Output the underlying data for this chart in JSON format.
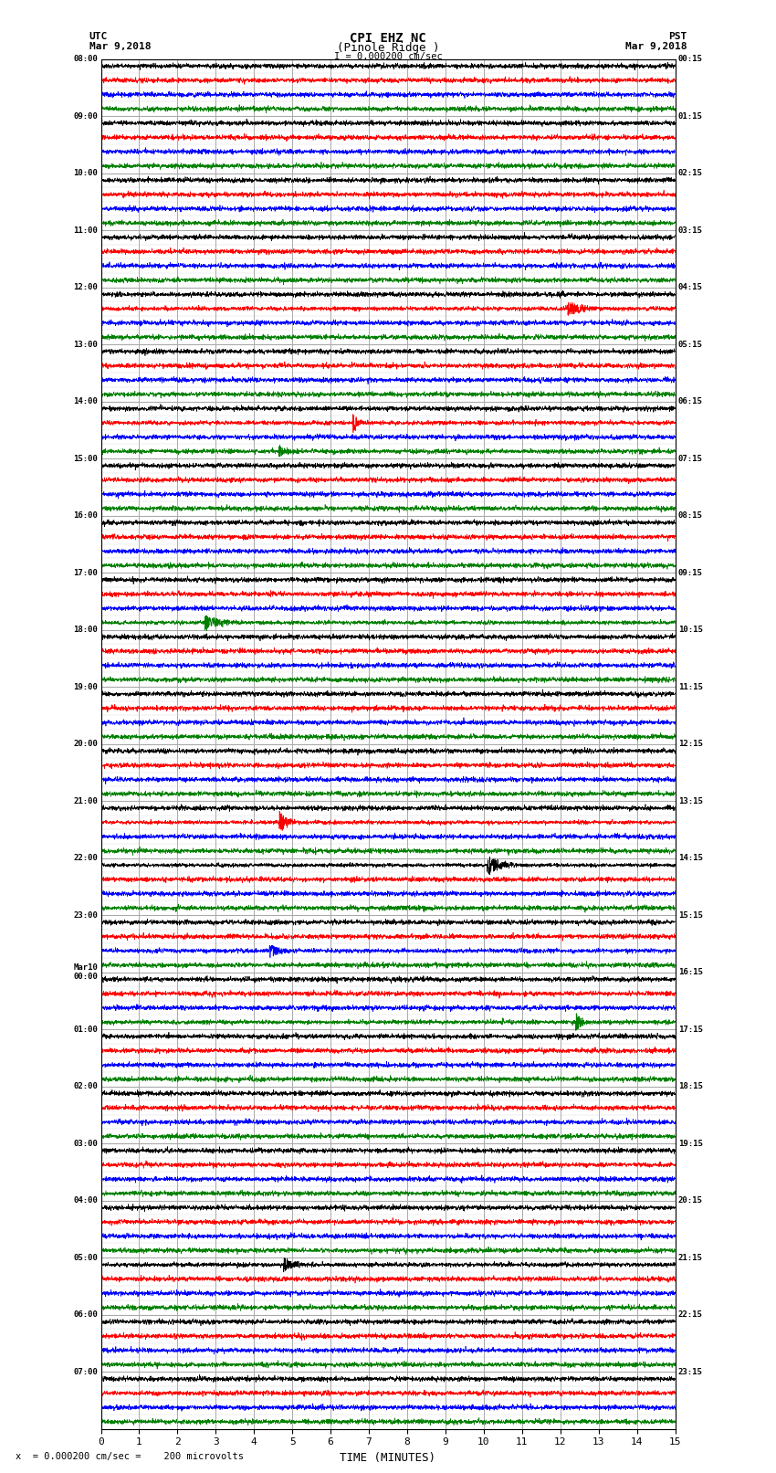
{
  "title_line1": "CPI EHZ NC",
  "title_line2": "(Pinole Ridge )",
  "scale_label": "I = 0.000200 cm/sec",
  "bottom_label": "TIME (MINUTES)",
  "bottom_note": "x  = 0.000200 cm/sec =    200 microvolts",
  "xlabel_ticks": [
    0,
    1,
    2,
    3,
    4,
    5,
    6,
    7,
    8,
    9,
    10,
    11,
    12,
    13,
    14,
    15
  ],
  "xlim": [
    0,
    15
  ],
  "background_color": "#ffffff",
  "trace_colors": [
    "black",
    "red",
    "blue",
    "green"
  ],
  "left_times_utc": [
    "08:00",
    "",
    "",
    "",
    "09:00",
    "",
    "",
    "",
    "10:00",
    "",
    "",
    "",
    "11:00",
    "",
    "",
    "",
    "12:00",
    "",
    "",
    "",
    "13:00",
    "",
    "",
    "",
    "14:00",
    "",
    "",
    "",
    "15:00",
    "",
    "",
    "",
    "16:00",
    "",
    "",
    "",
    "17:00",
    "",
    "",
    "",
    "18:00",
    "",
    "",
    "",
    "19:00",
    "",
    "",
    "",
    "20:00",
    "",
    "",
    "",
    "21:00",
    "",
    "",
    "",
    "22:00",
    "",
    "",
    "",
    "23:00",
    "",
    "",
    "",
    "Mar10\n00:00",
    "",
    "",
    "",
    "01:00",
    "",
    "",
    "",
    "02:00",
    "",
    "",
    "",
    "03:00",
    "",
    "",
    "",
    "04:00",
    "",
    "",
    "",
    "05:00",
    "",
    "",
    "",
    "06:00",
    "",
    "",
    "",
    "07:00",
    "",
    "",
    ""
  ],
  "right_times_pst": [
    "00:15",
    "",
    "",
    "",
    "01:15",
    "",
    "",
    "",
    "02:15",
    "",
    "",
    "",
    "03:15",
    "",
    "",
    "",
    "04:15",
    "",
    "",
    "",
    "05:15",
    "",
    "",
    "",
    "06:15",
    "",
    "",
    "",
    "07:15",
    "",
    "",
    "",
    "08:15",
    "",
    "",
    "",
    "09:15",
    "",
    "",
    "",
    "10:15",
    "",
    "",
    "",
    "11:15",
    "",
    "",
    "",
    "12:15",
    "",
    "",
    "",
    "13:15",
    "",
    "",
    "",
    "14:15",
    "",
    "",
    "",
    "15:15",
    "",
    "",
    "",
    "16:15",
    "",
    "",
    "",
    "17:15",
    "",
    "",
    "",
    "18:15",
    "",
    "",
    "",
    "19:15",
    "",
    "",
    "",
    "20:15",
    "",
    "",
    "",
    "21:15",
    "",
    "",
    "",
    "22:15",
    "",
    "",
    "",
    "23:15",
    "",
    "",
    ""
  ],
  "n_rows": 96,
  "trace_amplitude": 0.38,
  "noise_seed": 42,
  "fig_width": 8.5,
  "fig_height": 16.13,
  "dpi": 100
}
